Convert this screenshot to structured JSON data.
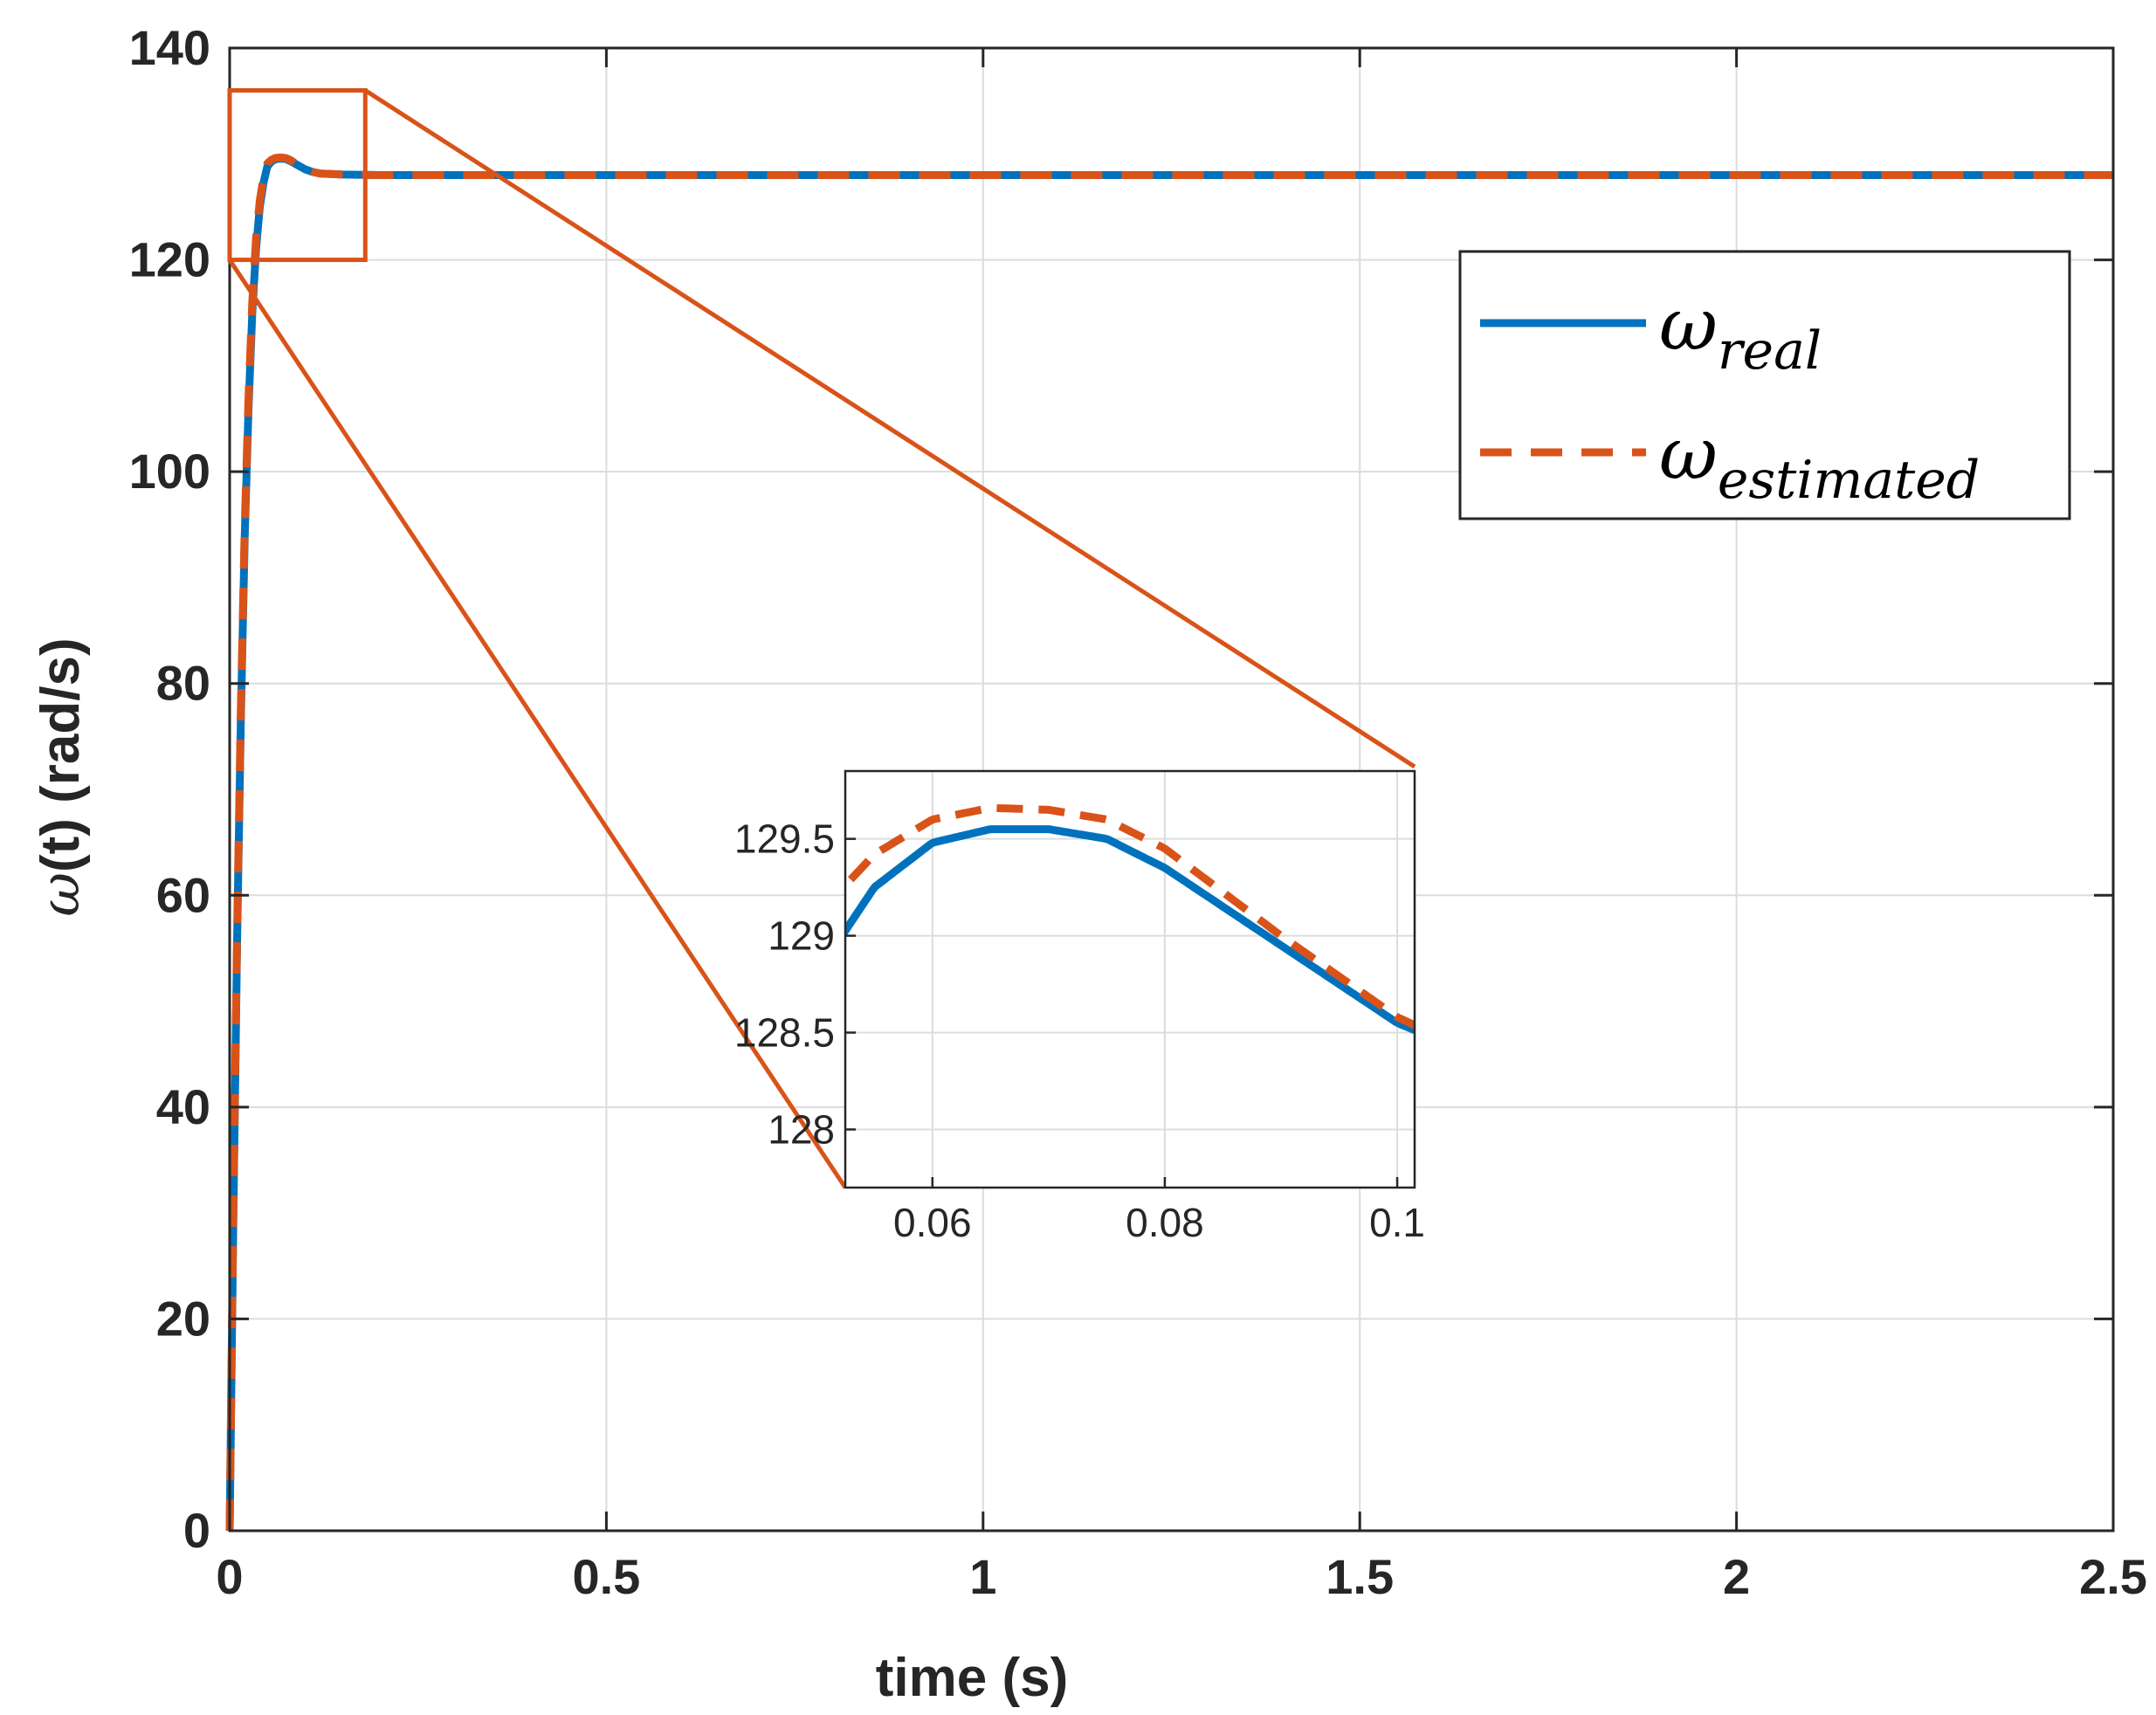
{
  "colors": {
    "real": "#0072BD",
    "estimated": "#D95319",
    "grid": "#dcdcdc",
    "axis": "#262626",
    "zoom_box": "#D95319"
  },
  "chart_data": {
    "type": "line",
    "xlabel": "time (s)",
    "ylabel_symbol": "ω",
    "ylabel_rest": "(t) (rad/s)",
    "xlim": [
      0,
      2.5
    ],
    "ylim": [
      0,
      140
    ],
    "xticks": [
      0,
      0.5,
      1,
      1.5,
      2,
      2.5
    ],
    "xtick_labels": [
      "0",
      "0.5",
      "1",
      "1.5",
      "2",
      "2.5"
    ],
    "yticks": [
      0,
      20,
      40,
      60,
      80,
      100,
      120,
      140
    ],
    "ytick_labels": [
      "0",
      "20",
      "40",
      "60",
      "80",
      "100",
      "120",
      "140"
    ],
    "grid": true,
    "legend_position": "top-right",
    "series": [
      {
        "name": "real",
        "legend_base": "ω",
        "legend_sub": "real",
        "style": "solid",
        "x": [
          0,
          0.005,
          0.01,
          0.015,
          0.02,
          0.025,
          0.03,
          0.035,
          0.04,
          0.045,
          0.05,
          0.055,
          0.06,
          0.065,
          0.07,
          0.075,
          0.08,
          0.09,
          0.1,
          0.11,
          0.12,
          0.15,
          0.2,
          0.5,
          1.0,
          1.5,
          2.0,
          2.5
        ],
        "y": [
          0,
          30,
          56,
          77,
          94,
          106,
          115,
          121,
          125,
          127.3,
          128.8,
          129.25,
          129.48,
          129.55,
          129.55,
          129.5,
          129.35,
          128.95,
          128.55,
          128.3,
          128.15,
          128.05,
          128.0,
          128.0,
          128.0,
          128.0,
          128.0,
          128.0
        ]
      },
      {
        "name": "estimated",
        "legend_base": "ω",
        "legend_sub": "estimated",
        "style": "dashed",
        "x": [
          0,
          0.005,
          0.01,
          0.015,
          0.02,
          0.025,
          0.03,
          0.035,
          0.04,
          0.045,
          0.05,
          0.055,
          0.06,
          0.065,
          0.07,
          0.075,
          0.08,
          0.09,
          0.1,
          0.11,
          0.12,
          0.15,
          0.2,
          0.5,
          1.0,
          1.5,
          2.0,
          2.5
        ],
        "y": [
          0,
          31,
          57,
          78,
          95,
          107,
          116,
          122,
          125.6,
          127.8,
          129.1,
          129.42,
          129.6,
          129.66,
          129.65,
          129.6,
          129.45,
          129.0,
          128.58,
          128.3,
          128.15,
          128.05,
          128.0,
          128.0,
          128.0,
          128.0,
          128.0,
          128.0
        ]
      }
    ],
    "zoom_region": {
      "xlim": [
        0,
        0.18
      ],
      "ylim": [
        120,
        136
      ]
    },
    "inset": {
      "xlim": [
        0.0525,
        0.1015
      ],
      "ylim": [
        127.7,
        129.85
      ],
      "xticks": [
        0.06,
        0.08,
        0.1
      ],
      "xtick_labels": [
        "0.06",
        "0.08",
        "0.1"
      ],
      "yticks": [
        128,
        128.5,
        129,
        129.5
      ],
      "ytick_labels": [
        "128",
        "128.5",
        "129",
        "129.5"
      ],
      "grid": true
    }
  }
}
